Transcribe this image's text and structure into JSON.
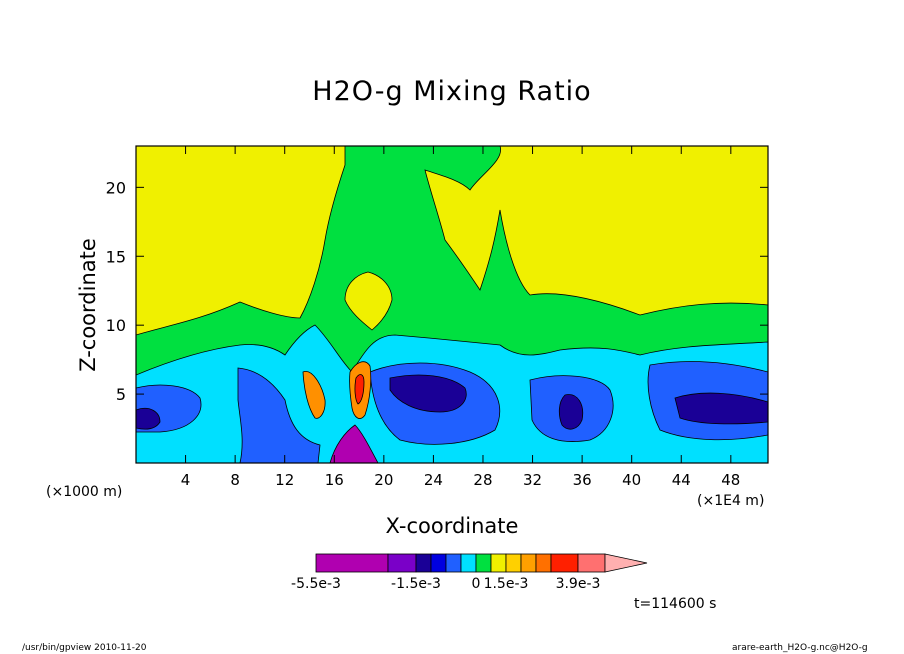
{
  "chart_data": {
    "type": "heatmap",
    "title": "H2O-g Mixing Ratio",
    "xlabel": "X-coordinate",
    "ylabel": "Z-coordinate",
    "x_unit_left": "(×1000 m)",
    "x_unit_right": "(×1E4 m)",
    "xlim": [
      0,
      51
    ],
    "ylim": [
      0,
      23
    ],
    "x_ticks": [
      4,
      8,
      12,
      16,
      20,
      24,
      28,
      32,
      36,
      40,
      44,
      48
    ],
    "y_ticks": [
      5,
      10,
      15,
      20
    ],
    "grid": false,
    "colorbar": {
      "colors": [
        "#b000b0",
        "#7a00c8",
        "#1a0096",
        "#0000e0",
        "#2060ff",
        "#00e0ff",
        "#00e040",
        "#f0f000",
        "#ffd000",
        "#ffa000",
        "#ff7000",
        "#ff2000",
        "#ff7070",
        "#ffb0b0"
      ],
      "labels": [
        "-5.5e-3",
        "-1.5e-3",
        "0",
        "1.5e-3",
        "3.9e-3"
      ]
    },
    "time_label": "t=114600 s"
  },
  "footer": {
    "left": "/usr/bin/gpview  2010-11-20",
    "right": "arare-earth_H2O-g.nc@H2O-g"
  }
}
